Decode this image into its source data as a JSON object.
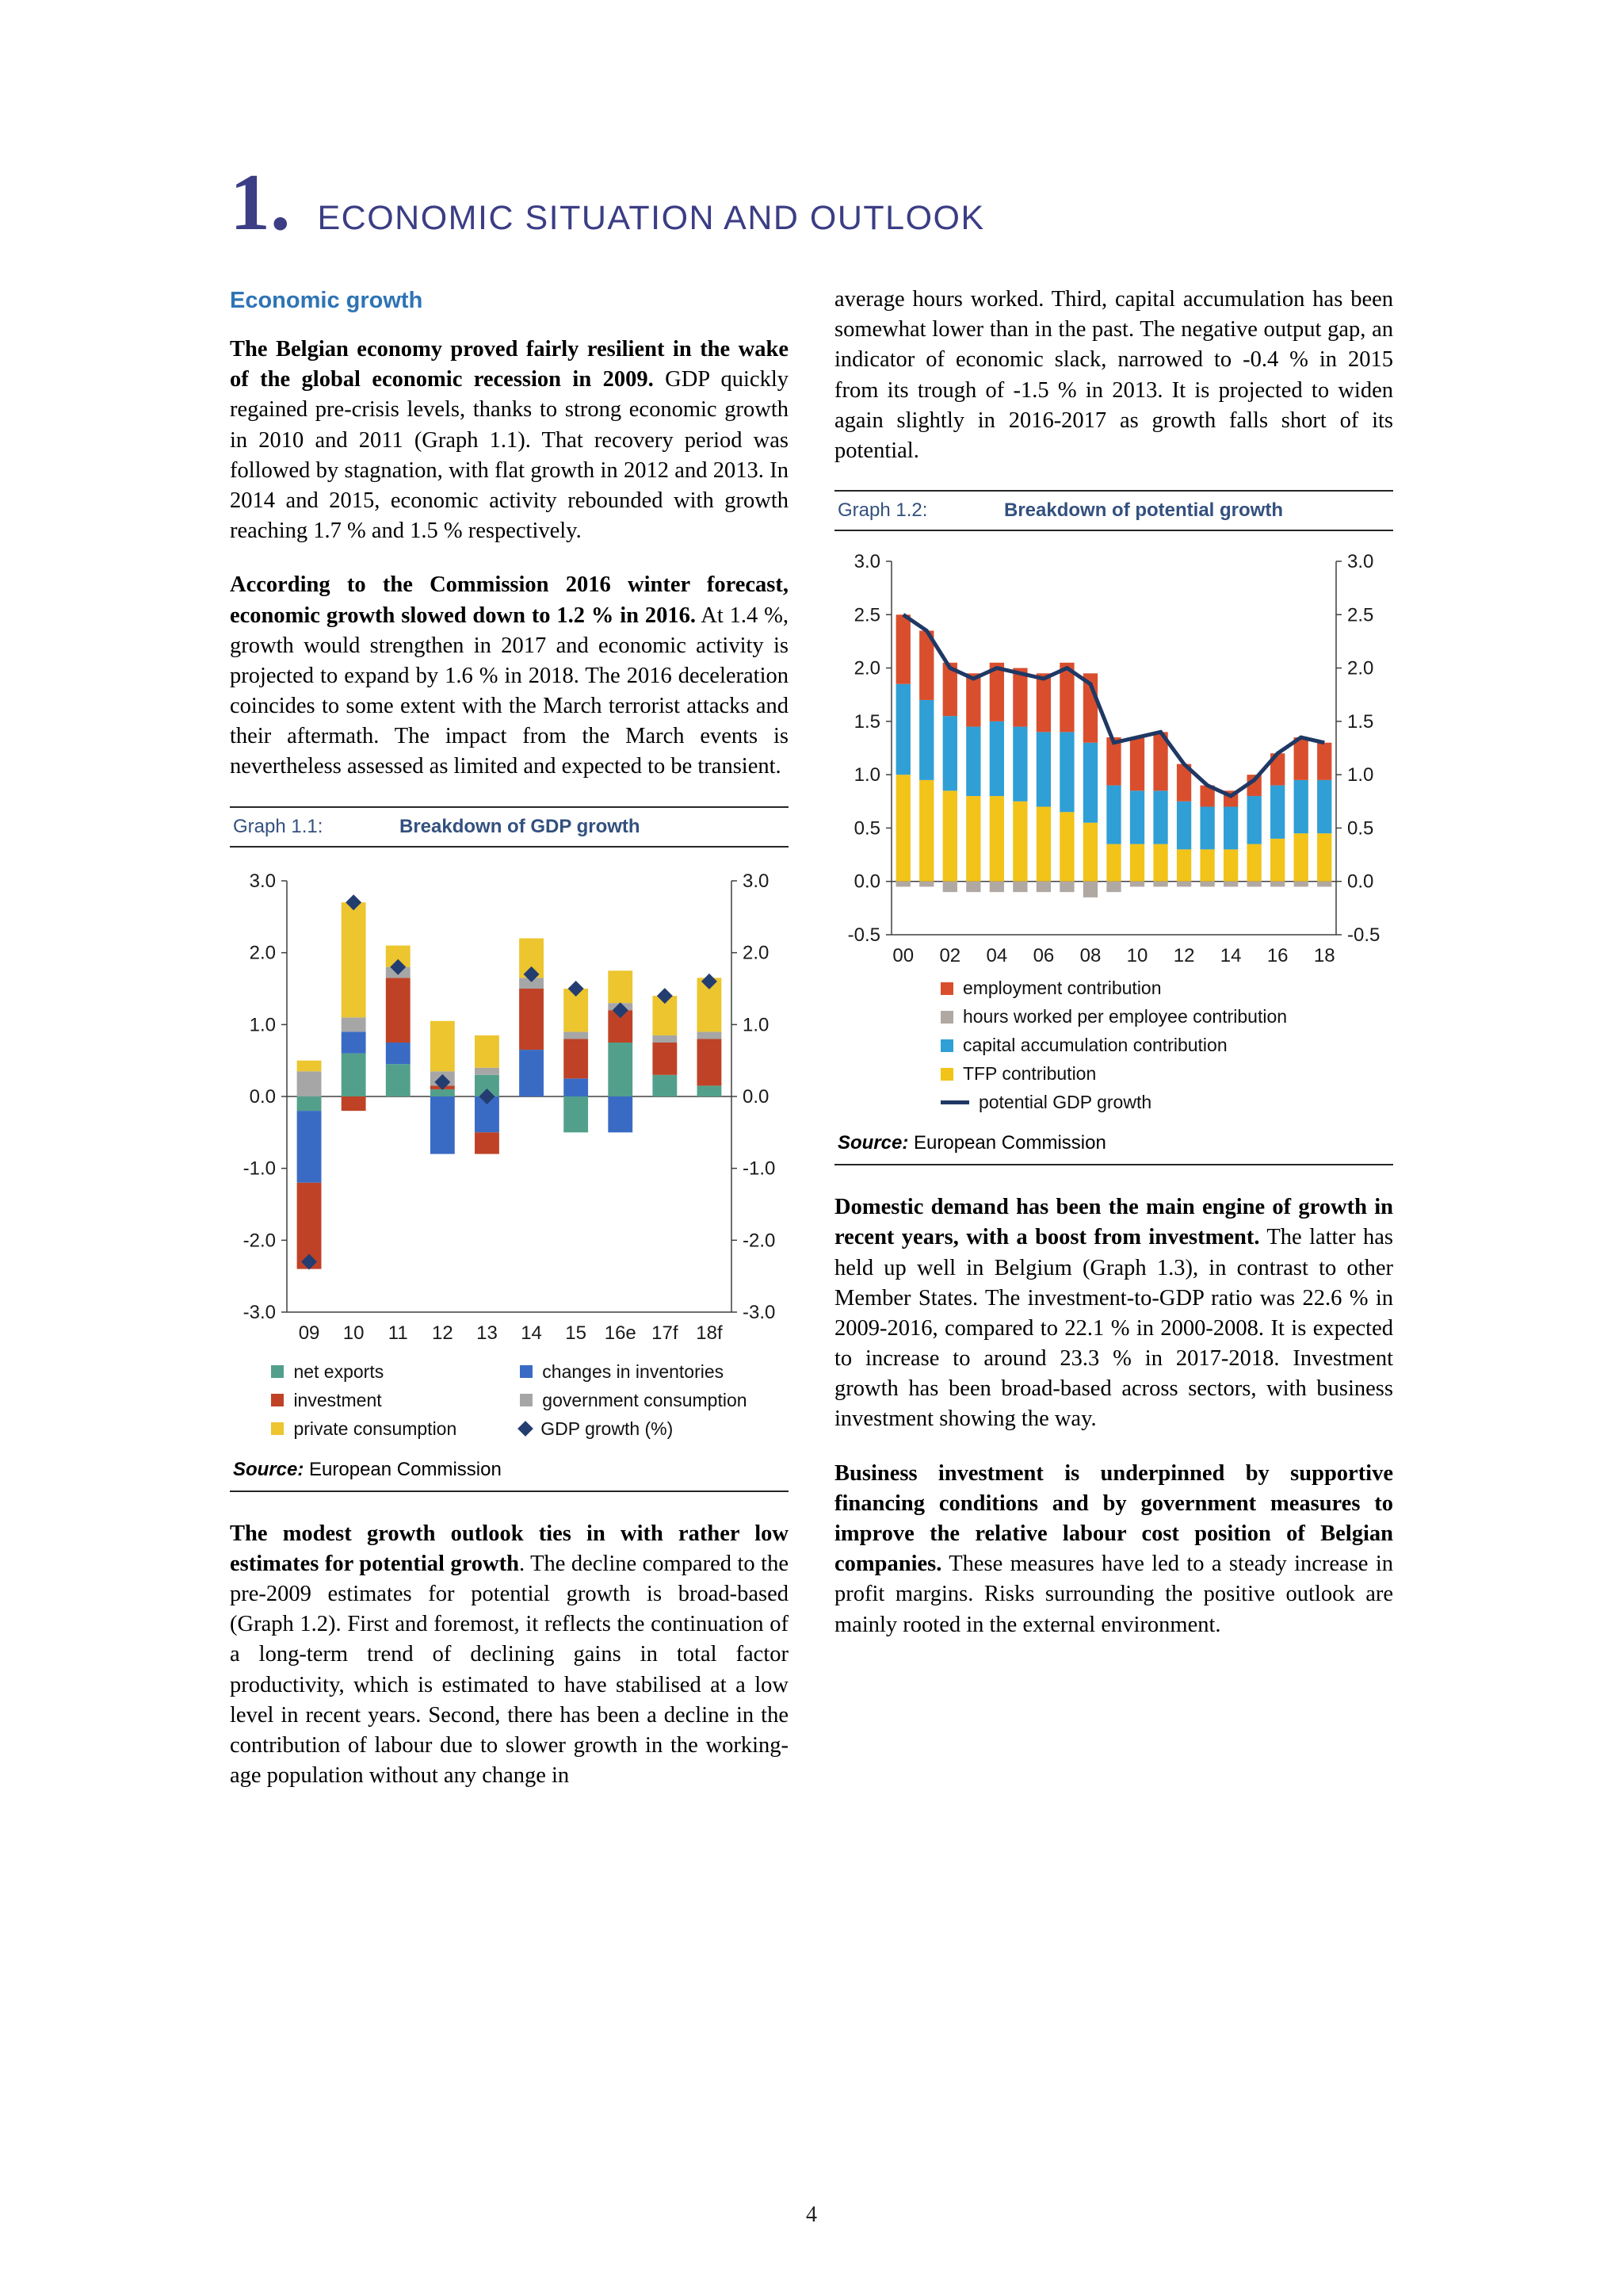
{
  "page": {
    "number": "4"
  },
  "header": {
    "number": "1.",
    "title": "ECONOMIC SITUATION AND OUTLOOK"
  },
  "left": {
    "section_heading": "Economic growth",
    "para1_bold": "The Belgian economy proved fairly resilient in the wake of the global economic recession in 2009.",
    "para1_text": " GDP quickly regained pre-crisis levels, thanks to strong economic growth in 2010 and 2011 (Graph 1.1). That recovery period was followed by stagnation, with flat growth in 2012 and 2013. In 2014 and 2015, economic activity rebounded with growth reaching 1.7 % and 1.5 % respectively.",
    "para2_bold": "According to the Commission 2016 winter forecast, economic growth slowed down to 1.2 % in 2016.",
    "para2_text": " At 1.4 %, growth would strengthen in 2017 and economic activity is projected to expand by 1.6 % in 2018. The 2016 deceleration coincides to some extent with the March terrorist attacks and their aftermath. The impact from the March events is nevertheless assessed as limited and expected to be transient.",
    "para3_bold": "The modest growth outlook ties in with rather low estimates for potential growth",
    "para3_text": ". The decline compared to the pre-2009 estimates for potential growth is broad-based (Graph 1.2). First and foremost, it reflects the continuation of a long-term trend of declining gains in total factor productivity, which is estimated to have stabilised at a low level in recent years. Second, there has been a decline in the contribution of labour due to slower growth in the working-age population without any change in"
  },
  "right": {
    "para0_text": "average hours worked. Third, capital accumulation has been somewhat lower than in the past. The negative output gap, an indicator of economic slack, narrowed to -0.4 % in 2015 from its trough of -1.5 % in 2013. It is projected to widen again slightly in 2016-2017 as growth falls short of its potential.",
    "para1_bold": "Domestic demand has been the main engine of growth in recent years, with a boost from investment.",
    "para1_text": " The latter has held up well in Belgium (Graph 1.3), in contrast to other Member States. The investment-to-GDP ratio was 22.6 % in 2009-2016, compared to 22.1 % in 2000-2008. It is expected to increase to around 23.3 % in 2017-2018. Investment growth has been broad-based across sectors, with business investment showing the way.",
    "para2_bold": "Business investment is underpinned by supportive financing conditions and by government measures to improve the relative labour cost position of Belgian companies.",
    "para2_text": " These measures have led to a steady increase in profit margins. Risks surrounding the positive outlook are mainly rooted in the external environment."
  },
  "graph1": {
    "label": "Graph 1.1:",
    "title": "Breakdown of GDP growth",
    "source_label": "Source:",
    "source_text": " European Commission"
  },
  "graph2": {
    "label": "Graph 1.2:",
    "title": "Breakdown of potential growth",
    "source_label": "Source:",
    "source_text": " European Commission"
  },
  "chart_data": [
    {
      "type": "bar",
      "stacked": true,
      "title": "Breakdown of GDP growth",
      "categories": [
        "09",
        "10",
        "11",
        "12",
        "13",
        "14",
        "15",
        "16e",
        "17f",
        "18f"
      ],
      "series": [
        {
          "name": "net exports",
          "color": "#52a08b",
          "values": [
            -0.2,
            0.6,
            0.45,
            0.1,
            0.3,
            0.0,
            -0.5,
            0.75,
            0.3,
            0.15
          ]
        },
        {
          "name": "changes in inventories",
          "color": "#3a6bc4",
          "values": [
            -1.0,
            0.3,
            0.3,
            -0.8,
            -0.5,
            0.65,
            0.25,
            -0.5,
            0.0,
            0.0
          ]
        },
        {
          "name": "investment",
          "color": "#bf4226",
          "values": [
            -1.2,
            -0.2,
            0.9,
            0.05,
            -0.3,
            0.85,
            0.55,
            0.45,
            0.45,
            0.65
          ]
        },
        {
          "name": "government consumption",
          "color": "#a6a6a6",
          "values": [
            0.35,
            0.2,
            0.15,
            0.2,
            0.1,
            0.15,
            0.1,
            0.1,
            0.1,
            0.1
          ]
        },
        {
          "name": "private consumption",
          "color": "#ecc52f",
          "values": [
            0.15,
            1.6,
            0.3,
            0.7,
            0.45,
            0.55,
            0.6,
            0.45,
            0.55,
            0.75
          ]
        }
      ],
      "overlay": {
        "type": "diamond",
        "name": "GDP growth (%)",
        "color": "#243d70",
        "values": [
          -2.3,
          2.7,
          1.8,
          0.2,
          0.0,
          1.7,
          1.5,
          1.2,
          1.4,
          1.6
        ]
      },
      "ylim": [
        -3.0,
        3.0
      ],
      "ytick_step": 1.0,
      "xlabel": "",
      "ylabel": "",
      "grid": false,
      "legend_position": "bottom",
      "legend": [
        {
          "name": "net exports",
          "color": "#52a08b",
          "swatch": "square"
        },
        {
          "name": "changes in inventories",
          "color": "#3a6bc4",
          "swatch": "square"
        },
        {
          "name": "investment",
          "color": "#bf4226",
          "swatch": "square"
        },
        {
          "name": "government consumption",
          "color": "#a6a6a6",
          "swatch": "square"
        },
        {
          "name": "private consumption",
          "color": "#ecc52f",
          "swatch": "square"
        },
        {
          "name": "GDP growth (%)",
          "color": "#243d70",
          "swatch": "diamond"
        }
      ]
    },
    {
      "type": "bar",
      "stacked": true,
      "title": "Breakdown of potential growth",
      "categories": [
        "00",
        "01",
        "02",
        "03",
        "04",
        "05",
        "06",
        "07",
        "08",
        "09",
        "10",
        "11",
        "12",
        "13",
        "14",
        "15",
        "16",
        "17",
        "18"
      ],
      "series": [
        {
          "name": "TFP contribution",
          "color": "#f2c318",
          "values": [
            1.0,
            0.95,
            0.85,
            0.8,
            0.8,
            0.75,
            0.7,
            0.65,
            0.55,
            0.35,
            0.35,
            0.35,
            0.3,
            0.3,
            0.3,
            0.35,
            0.4,
            0.45,
            0.45
          ]
        },
        {
          "name": "capital accumulation contribution",
          "color": "#2f9fd5",
          "values": [
            0.85,
            0.75,
            0.7,
            0.65,
            0.7,
            0.7,
            0.7,
            0.75,
            0.75,
            0.55,
            0.5,
            0.5,
            0.45,
            0.4,
            0.4,
            0.45,
            0.5,
            0.5,
            0.5
          ]
        },
        {
          "name": "hours worked per employee contribution",
          "color": "#b0a8a2",
          "values": [
            -0.05,
            -0.05,
            -0.1,
            -0.1,
            -0.1,
            -0.1,
            -0.1,
            -0.1,
            -0.15,
            -0.1,
            -0.05,
            -0.05,
            -0.05,
            -0.05,
            -0.05,
            -0.05,
            -0.05,
            -0.05,
            -0.05
          ]
        },
        {
          "name": "employment contribution",
          "color": "#d94f2e",
          "values": [
            0.65,
            0.65,
            0.5,
            0.5,
            0.55,
            0.55,
            0.55,
            0.65,
            0.65,
            0.45,
            0.5,
            0.55,
            0.35,
            0.2,
            0.15,
            0.2,
            0.3,
            0.4,
            0.35
          ]
        }
      ],
      "overlay": {
        "type": "line",
        "name": "potential GDP growth",
        "color": "#1f3864",
        "values": [
          2.5,
          2.35,
          2.0,
          1.9,
          2.0,
          1.95,
          1.9,
          2.0,
          1.85,
          1.3,
          1.35,
          1.4,
          1.1,
          0.9,
          0.8,
          0.95,
          1.2,
          1.35,
          1.3
        ]
      },
      "ylim": [
        -0.5,
        3.0
      ],
      "ytick_step": 0.5,
      "xlabel": "",
      "ylabel": "",
      "grid": false,
      "legend_position": "bottom",
      "legend": [
        {
          "name": "employment contribution",
          "color": "#d94f2e",
          "swatch": "square"
        },
        {
          "name": "hours worked per employee contribution",
          "color": "#b0a8a2",
          "swatch": "square"
        },
        {
          "name": "capital accumulation contribution",
          "color": "#2f9fd5",
          "swatch": "square"
        },
        {
          "name": "TFP contribution",
          "color": "#f2c318",
          "swatch": "square"
        },
        {
          "name": "potential GDP growth",
          "color": "#1f3864",
          "swatch": "line"
        }
      ]
    }
  ]
}
